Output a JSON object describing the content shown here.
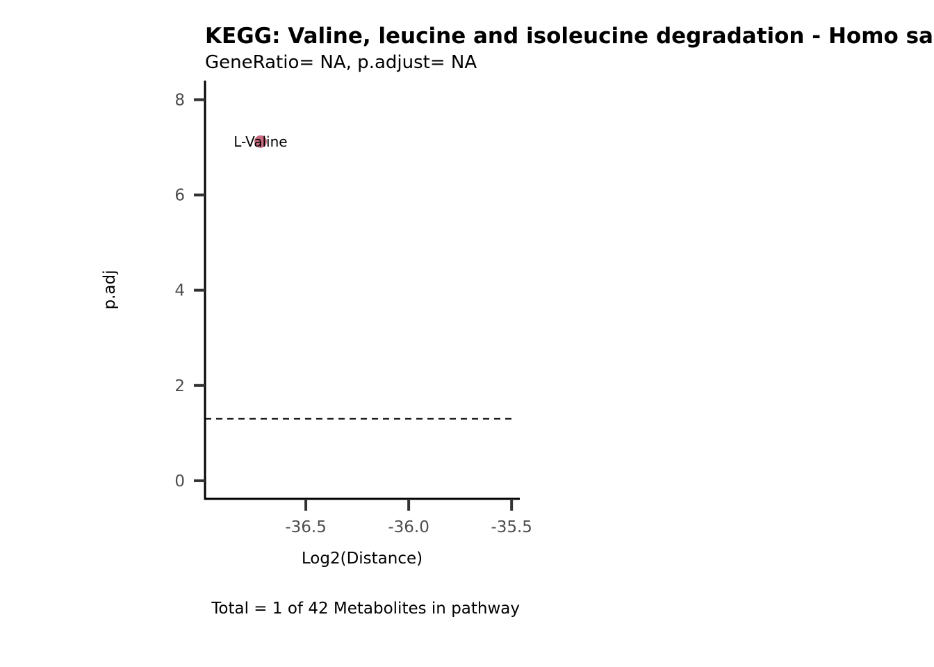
{
  "chart_data": {
    "type": "scatter",
    "title": "KEGG: Valine, leucine and isoleucine degradation - Homo sapiens (human)",
    "subtitle": "GeneRatio= NA, p.adjust= NA",
    "xlabel": "Log2(Distance)",
    "ylabel": "p.adj",
    "caption": "Total = 1 of 42 Metabolites in pathway",
    "xlim": [
      -36.99,
      -35.46
    ],
    "ylim": [
      -0.38,
      8.4
    ],
    "x_ticks": [
      {
        "value": -36.5,
        "label": "-36.5"
      },
      {
        "value": -36.0,
        "label": "-36.0"
      },
      {
        "value": -35.5,
        "label": "-35.5"
      }
    ],
    "y_ticks": [
      {
        "value": 0,
        "label": "0"
      },
      {
        "value": 2,
        "label": "2"
      },
      {
        "value": 4,
        "label": "4"
      },
      {
        "value": 6,
        "label": "6"
      },
      {
        "value": 8,
        "label": "8"
      }
    ],
    "threshold_line": {
      "y": 1.3,
      "style": "dashed",
      "x_range": [
        -36.99,
        -35.5
      ]
    },
    "points": [
      {
        "label": "L-Valine",
        "x": -36.72,
        "y": 7.12,
        "color": "#c25b72"
      }
    ],
    "grid": false,
    "legend": "none"
  }
}
